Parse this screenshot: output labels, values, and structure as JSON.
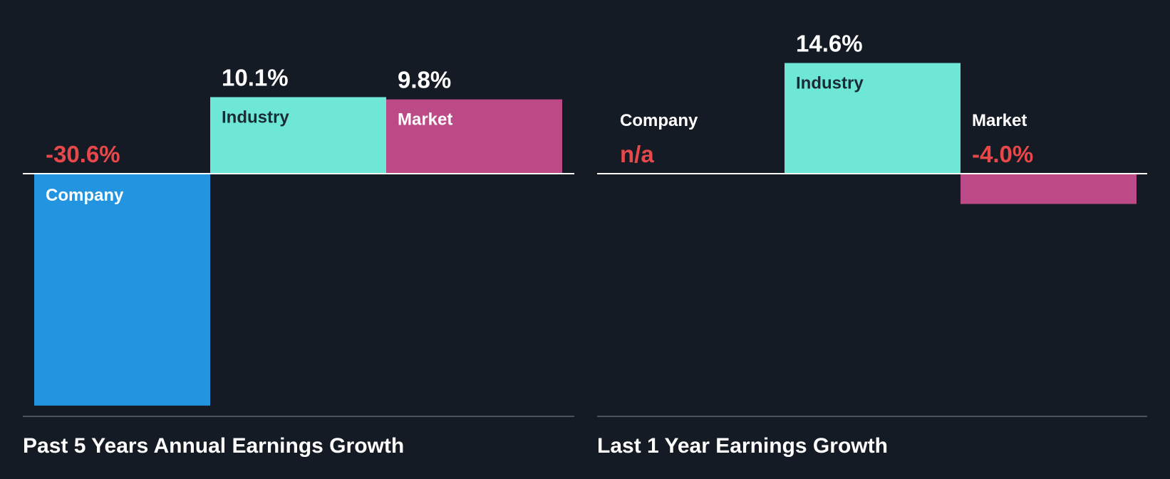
{
  "colors": {
    "background": "#151b24",
    "company": "#2394e0",
    "industry": "#6ee7d6",
    "market": "#bb4a86",
    "negative_value": "#e8484a",
    "positive_value": "#ffffff",
    "label_on_light": "#1b2b36",
    "label_on_dark": "#ffffff",
    "zero_line": "#ffffff",
    "baseline": "#4a525c"
  },
  "chart_data": [
    {
      "type": "bar",
      "title": "Past 5 Years Annual Earnings Growth",
      "categories": [
        "Company",
        "Industry",
        "Market"
      ],
      "values": [
        -30.6,
        10.1,
        9.8
      ],
      "value_labels": [
        "-30.6%",
        "10.1%",
        "9.8%"
      ],
      "unit": "%"
    },
    {
      "type": "bar",
      "title": "Last 1 Year Earnings Growth",
      "categories": [
        "Company",
        "Industry",
        "Market"
      ],
      "values": [
        null,
        14.6,
        -4.0
      ],
      "value_labels": [
        "n/a",
        "14.6%",
        "-4.0%"
      ],
      "unit": "%"
    }
  ]
}
